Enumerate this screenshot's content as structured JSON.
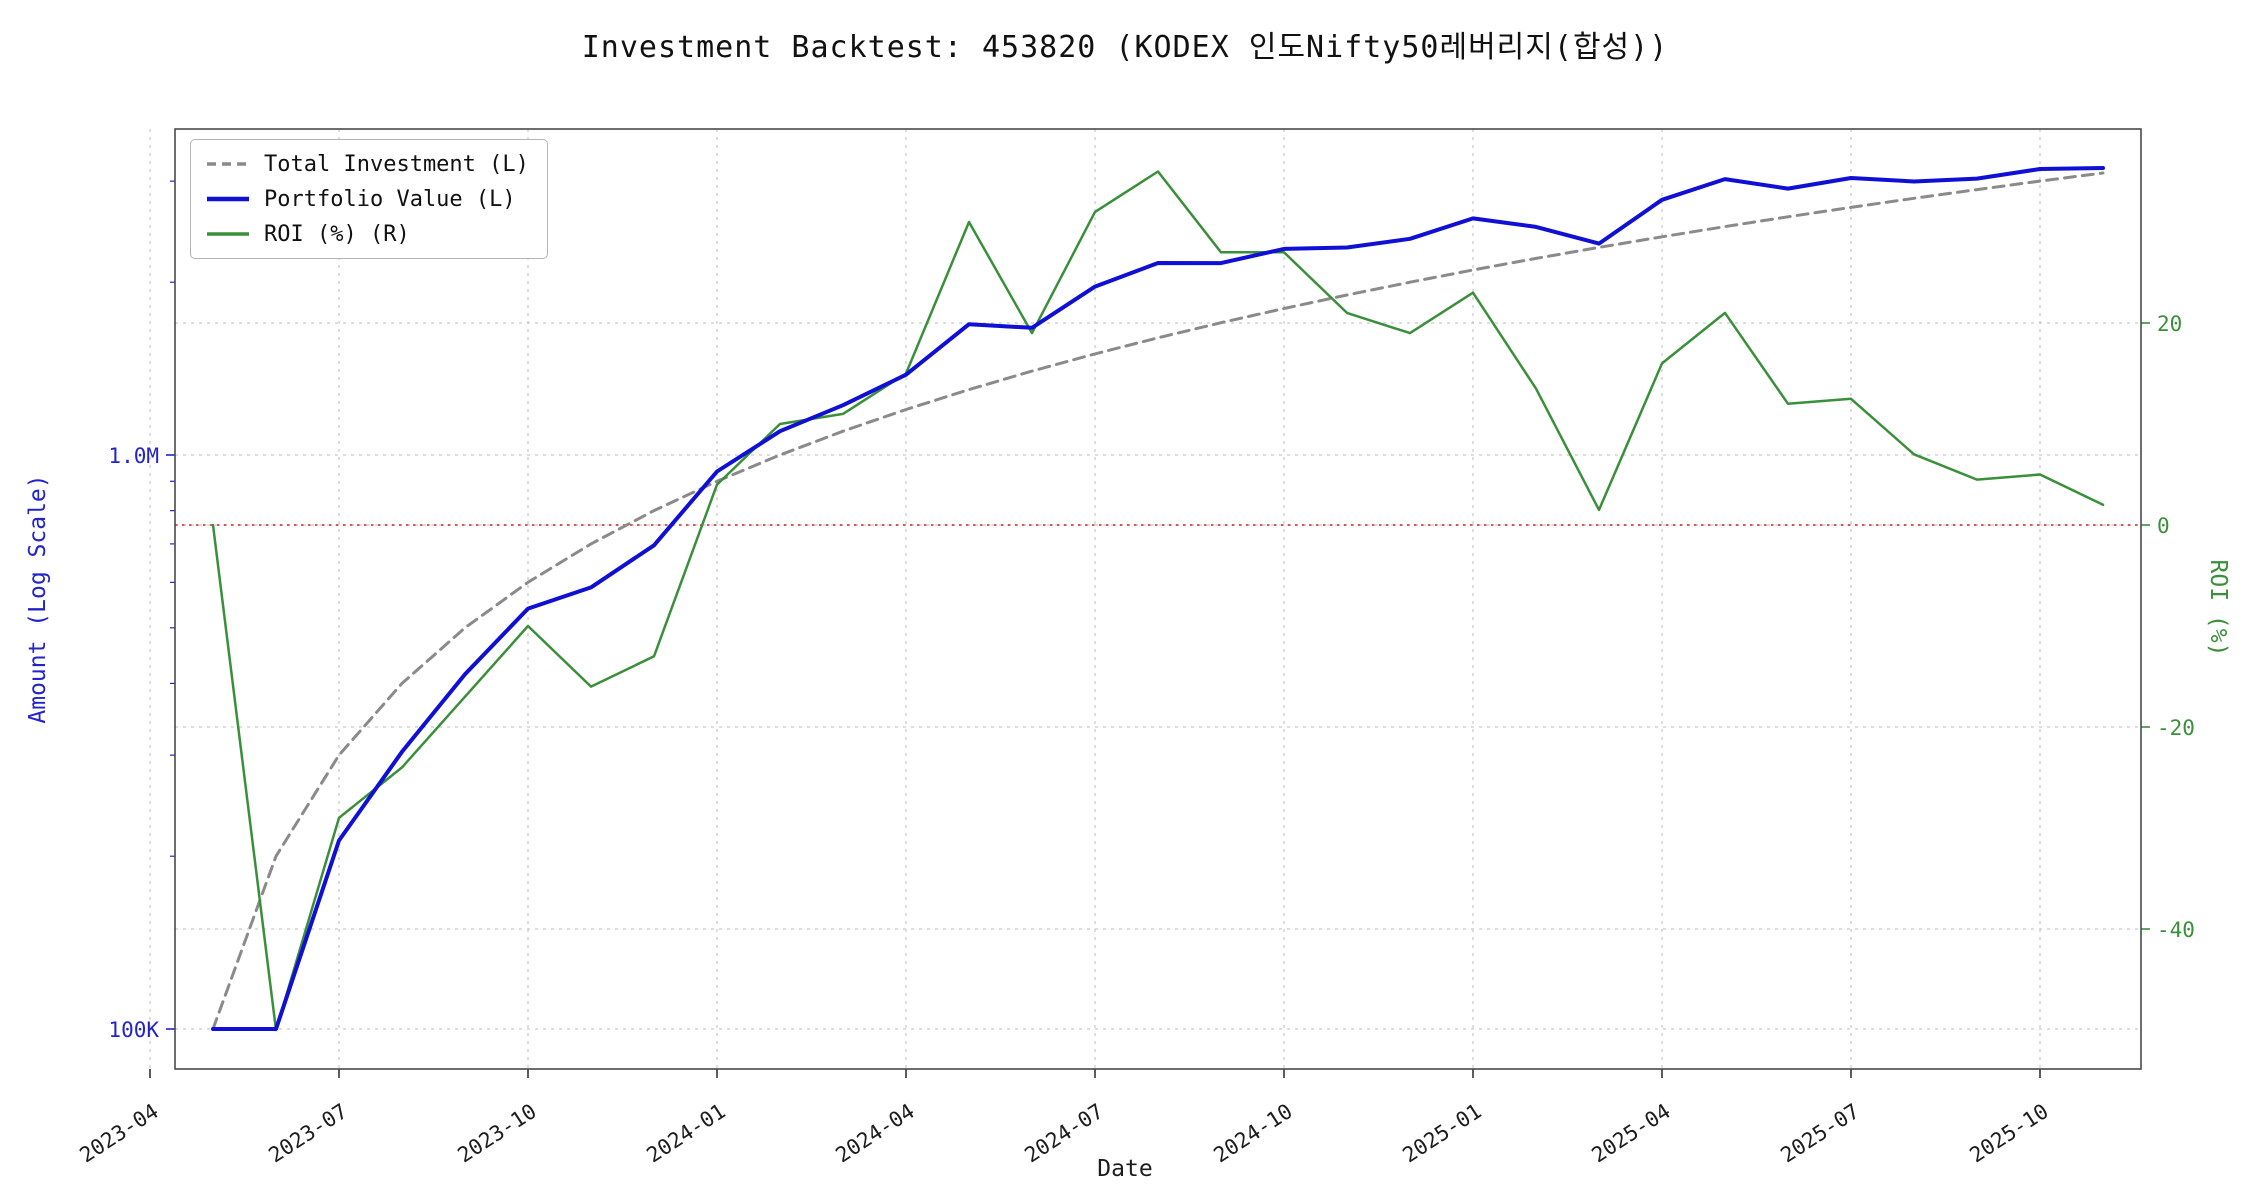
{
  "chart_data": {
    "type": "line",
    "title": "Investment Backtest: 453820 (KODEX 인도Nifty50레버리지(합성))",
    "xlabel": "Date",
    "ylabel_left": "Amount (Log Scale)",
    "ylabel_right": "ROI (%)",
    "y_left_scale": "log",
    "grid": true,
    "legend_position": "upper-left",
    "x": [
      "2023-05",
      "2023-06",
      "2023-07",
      "2023-08",
      "2023-09",
      "2023-10",
      "2023-11",
      "2023-12",
      "2024-01",
      "2024-02",
      "2024-03",
      "2024-04",
      "2024-05",
      "2024-06",
      "2024-07",
      "2024-08",
      "2024-09",
      "2024-10",
      "2024-11",
      "2024-12",
      "2025-01",
      "2025-02",
      "2025-03",
      "2025-04",
      "2025-05",
      "2025-06",
      "2025-07",
      "2025-08",
      "2025-09",
      "2025-10",
      "2025-11"
    ],
    "x_ticks": [
      "2023-04",
      "2023-07",
      "2023-10",
      "2024-01",
      "2024-04",
      "2024-07",
      "2024-10",
      "2025-01",
      "2025-04",
      "2025-07",
      "2025-10"
    ],
    "y_left_ticks": [
      {
        "label": "100K",
        "value": 100000
      },
      {
        "label": "1.0M",
        "value": 1000000
      }
    ],
    "y_left_minor": [
      200000,
      300000,
      400000,
      500000,
      600000,
      700000,
      800000,
      900000,
      2000000,
      3000000
    ],
    "y_right_ticks": [
      {
        "label": "-40",
        "value": -40
      },
      {
        "label": "-20",
        "value": -20
      },
      {
        "label": "0",
        "value": 0
      },
      {
        "label": "20",
        "value": 20
      }
    ],
    "zero_line": {
      "value": 0,
      "color": "#cc2222"
    },
    "series": [
      {
        "name": "Total Investment (L)",
        "axis": "left",
        "color": "#8a8a8a",
        "dash": "11 7",
        "width": 3,
        "z": 0,
        "data_name": "total-investment-line",
        "values": [
          100000,
          200000,
          300000,
          400000,
          500000,
          600000,
          700000,
          800000,
          900000,
          1000000,
          1100000,
          1200000,
          1300000,
          1400000,
          1500000,
          1600000,
          1700000,
          1800000,
          1900000,
          2000000,
          2100000,
          2200000,
          2300000,
          2400000,
          2500000,
          2600000,
          2700000,
          2800000,
          2900000,
          3000000,
          3100000
        ]
      },
      {
        "name": "Portfolio Value (L)",
        "axis": "left",
        "color": "#0f0fd6",
        "dash": null,
        "width": 4,
        "z": 2,
        "data_name": "portfolio-value-line",
        "values": [
          100000,
          100000,
          213000,
          304000,
          415000,
          540000,
          588000,
          696000,
          936000,
          1100000,
          1221000,
          1380000,
          1690000,
          1666000,
          1965000,
          2160000,
          2159000,
          2286000,
          2299000,
          2380000,
          2583000,
          2497000,
          2335000,
          2784000,
          3025000,
          2912000,
          3038000,
          2996000,
          3031000,
          3150000,
          3162000
        ]
      },
      {
        "name": "ROI (%) (R)",
        "axis": "right",
        "color": "#3a8f3a",
        "dash": null,
        "width": 2.5,
        "z": 1,
        "data_name": "roi-line",
        "values": [
          0,
          -50,
          -29,
          -24,
          -17,
          -10,
          -16,
          -13,
          4,
          10,
          11,
          15,
          30,
          19,
          31,
          35,
          27,
          27,
          21,
          19,
          23,
          13.5,
          1.5,
          16,
          21,
          12,
          12.5,
          7,
          4.5,
          5,
          2
        ]
      }
    ]
  }
}
